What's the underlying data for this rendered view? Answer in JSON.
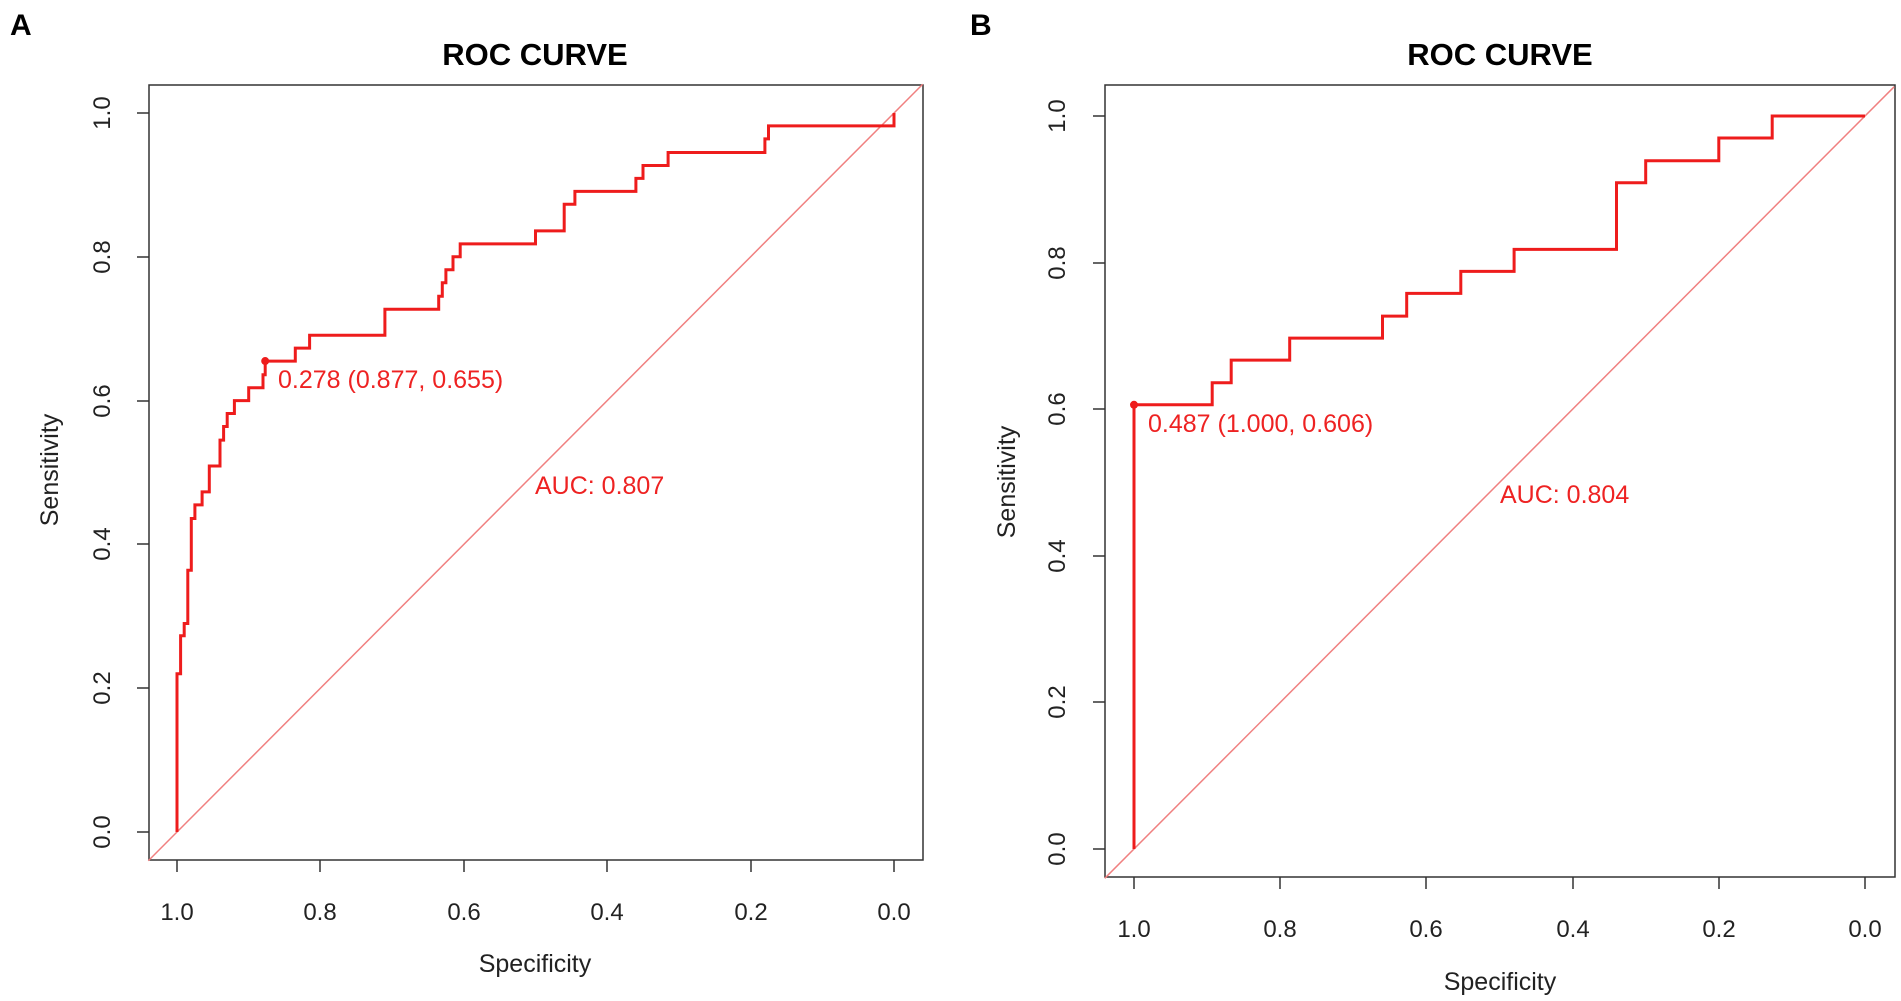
{
  "figure": {
    "panels": [
      {
        "letter": "A"
      },
      {
        "letter": "B"
      }
    ]
  },
  "colors": {
    "curve": "#ee1c1c",
    "diagonal": "#f08080",
    "annotation": "#ee2222"
  },
  "chart_data": [
    {
      "type": "line",
      "panel": "A",
      "title": "ROC CURVE",
      "xlabel": "Specificity",
      "ylabel": "Sensitivity",
      "xlim": [
        1.0,
        0.0
      ],
      "ylim": [
        0.0,
        1.0
      ],
      "xticks": [
        "1.0",
        "0.8",
        "0.6",
        "0.4",
        "0.2",
        "0.0"
      ],
      "yticks": [
        "0.0",
        "0.2",
        "0.4",
        "0.6",
        "0.8",
        "1.0"
      ],
      "grid": false,
      "reference_line": "diagonal",
      "series": [
        {
          "name": "ROC",
          "specificity": [
            1.0,
            1.0,
            0.995,
            0.995,
            0.99,
            0.99,
            0.985,
            0.985,
            0.98,
            0.98,
            0.975,
            0.975,
            0.965,
            0.965,
            0.955,
            0.955,
            0.94,
            0.94,
            0.935,
            0.935,
            0.93,
            0.93,
            0.92,
            0.92,
            0.9,
            0.9,
            0.88,
            0.88,
            0.877,
            0.877,
            0.835,
            0.835,
            0.815,
            0.815,
            0.71,
            0.71,
            0.635,
            0.635,
            0.63,
            0.63,
            0.625,
            0.625,
            0.615,
            0.615,
            0.605,
            0.605,
            0.5,
            0.5,
            0.46,
            0.46,
            0.445,
            0.445,
            0.36,
            0.36,
            0.35,
            0.35,
            0.315,
            0.315,
            0.18,
            0.18,
            0.175,
            0.175,
            0.0,
            0.0
          ],
          "sensitivity": [
            0.0,
            0.22,
            0.22,
            0.273,
            0.273,
            0.29,
            0.29,
            0.364,
            0.364,
            0.436,
            0.436,
            0.455,
            0.455,
            0.473,
            0.473,
            0.509,
            0.509,
            0.545,
            0.545,
            0.564,
            0.564,
            0.582,
            0.582,
            0.6,
            0.6,
            0.618,
            0.618,
            0.636,
            0.636,
            0.655,
            0.655,
            0.673,
            0.673,
            0.691,
            0.691,
            0.727,
            0.727,
            0.745,
            0.745,
            0.764,
            0.764,
            0.782,
            0.782,
            0.8,
            0.8,
            0.818,
            0.818,
            0.836,
            0.836,
            0.873,
            0.873,
            0.891,
            0.891,
            0.909,
            0.909,
            0.927,
            0.927,
            0.945,
            0.945,
            0.964,
            0.964,
            0.982,
            0.982,
            1.0
          ]
        }
      ],
      "optimal_point": {
        "specificity": 0.877,
        "sensitivity": 0.655,
        "label": "0.278 (0.877, 0.655)"
      },
      "annotations": {
        "auc": "AUC: 0.807"
      }
    },
    {
      "type": "line",
      "panel": "B",
      "title": "ROC CURVE",
      "xlabel": "Specificity",
      "ylabel": "Sensitivity",
      "xlim": [
        1.0,
        0.0
      ],
      "ylim": [
        0.0,
        1.0
      ],
      "xticks": [
        "1.0",
        "0.8",
        "0.6",
        "0.4",
        "0.2",
        "0.0"
      ],
      "yticks": [
        "0.0",
        "0.2",
        "0.4",
        "0.6",
        "0.8",
        "1.0"
      ],
      "grid": false,
      "reference_line": "diagonal",
      "series": [
        {
          "name": "ROC",
          "specificity": [
            1.0,
            1.0,
            0.893,
            0.893,
            0.867,
            0.867,
            0.787,
            0.787,
            0.66,
            0.66,
            0.627,
            0.627,
            0.553,
            0.553,
            0.48,
            0.48,
            0.34,
            0.34,
            0.3,
            0.3,
            0.2,
            0.2,
            0.127,
            0.127,
            0.0
          ],
          "sensitivity": [
            0.0,
            0.606,
            0.606,
            0.636,
            0.636,
            0.667,
            0.667,
            0.697,
            0.697,
            0.727,
            0.727,
            0.758,
            0.758,
            0.788,
            0.788,
            0.818,
            0.818,
            0.909,
            0.909,
            0.939,
            0.939,
            0.97,
            0.97,
            1.0,
            1.0
          ]
        }
      ],
      "optimal_point": {
        "specificity": 1.0,
        "sensitivity": 0.606,
        "label": "0.487 (1.000, 0.606)"
      },
      "annotations": {
        "auc": "AUC: 0.804"
      }
    }
  ]
}
